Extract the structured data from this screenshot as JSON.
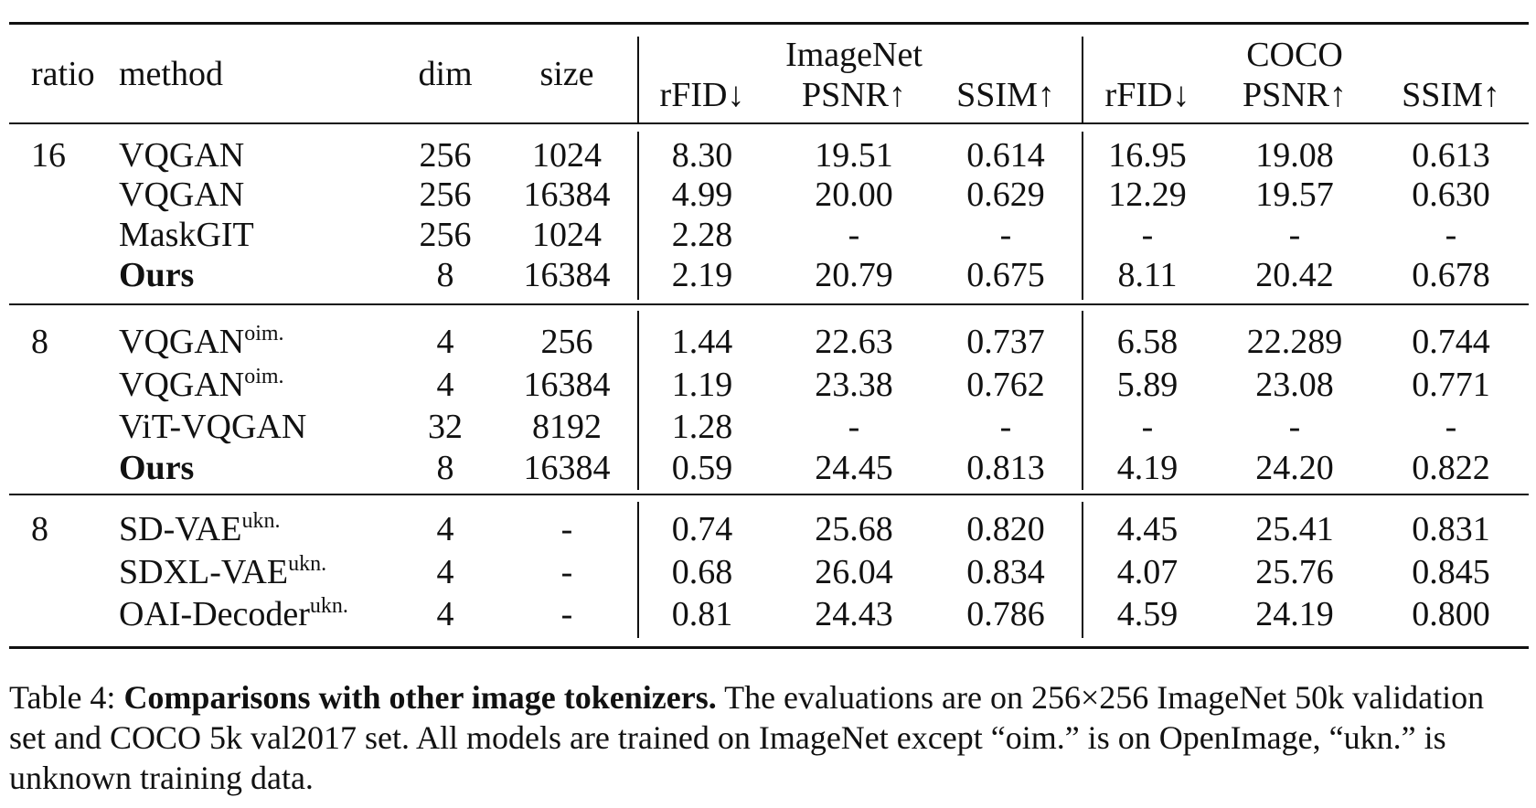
{
  "table": {
    "headers": {
      "ratio": "ratio",
      "method": "method",
      "dim": "dim",
      "size": "size",
      "group_imagenet": "ImageNet",
      "group_coco": "COCO",
      "rfid": "rFID↓",
      "psnr": "PSNR↑",
      "ssim": "SSIM↑"
    },
    "sections": [
      {
        "ratio": "16",
        "rows": [
          {
            "method": "VQGAN",
            "sup": "",
            "bold": false,
            "dim": "256",
            "size": "1024",
            "in_rfid": "8.30",
            "in_psnr": "19.51",
            "in_ssim": "0.614",
            "co_rfid": "16.95",
            "co_psnr": "19.08",
            "co_ssim": "0.613"
          },
          {
            "method": "VQGAN",
            "sup": "",
            "bold": false,
            "dim": "256",
            "size": "16384",
            "in_rfid": "4.99",
            "in_psnr": "20.00",
            "in_ssim": "0.629",
            "co_rfid": "12.29",
            "co_psnr": "19.57",
            "co_ssim": "0.630"
          },
          {
            "method": "MaskGIT",
            "sup": "",
            "bold": false,
            "dim": "256",
            "size": "1024",
            "in_rfid": "2.28",
            "in_psnr": "-",
            "in_ssim": "-",
            "co_rfid": "-",
            "co_psnr": "-",
            "co_ssim": "-"
          },
          {
            "method": "Ours",
            "sup": "",
            "bold": true,
            "dim": "8",
            "size": "16384",
            "in_rfid": "2.19",
            "in_psnr": "20.79",
            "in_ssim": "0.675",
            "co_rfid": "8.11",
            "co_psnr": "20.42",
            "co_ssim": "0.678"
          }
        ]
      },
      {
        "ratio": "8",
        "rows": [
          {
            "method": "VQGAN",
            "sup": "oim.",
            "bold": false,
            "dim": "4",
            "size": "256",
            "in_rfid": "1.44",
            "in_psnr": "22.63",
            "in_ssim": "0.737",
            "co_rfid": "6.58",
            "co_psnr": "22.289",
            "co_ssim": "0.744"
          },
          {
            "method": "VQGAN",
            "sup": "oim.",
            "bold": false,
            "dim": "4",
            "size": "16384",
            "in_rfid": "1.19",
            "in_psnr": "23.38",
            "in_ssim": "0.762",
            "co_rfid": "5.89",
            "co_psnr": "23.08",
            "co_ssim": "0.771"
          },
          {
            "method": "ViT-VQGAN",
            "sup": "",
            "bold": false,
            "dim": "32",
            "size": "8192",
            "in_rfid": "1.28",
            "in_psnr": "-",
            "in_ssim": "-",
            "co_rfid": "-",
            "co_psnr": "-",
            "co_ssim": "-"
          },
          {
            "method": "Ours",
            "sup": "",
            "bold": true,
            "dim": "8",
            "size": "16384",
            "in_rfid": "0.59",
            "in_psnr": "24.45",
            "in_ssim": "0.813",
            "co_rfid": "4.19",
            "co_psnr": "24.20",
            "co_ssim": "0.822"
          }
        ]
      },
      {
        "ratio": "8",
        "rows": [
          {
            "method": "SD-VAE",
            "sup": "ukn.",
            "bold": false,
            "dim": "4",
            "size": "-",
            "in_rfid": "0.74",
            "in_psnr": "25.68",
            "in_ssim": "0.820",
            "co_rfid": "4.45",
            "co_psnr": "25.41",
            "co_ssim": "0.831"
          },
          {
            "method": "SDXL-VAE",
            "sup": "ukn.",
            "bold": false,
            "dim": "4",
            "size": "-",
            "in_rfid": "0.68",
            "in_psnr": "26.04",
            "in_ssim": "0.834",
            "co_rfid": "4.07",
            "co_psnr": "25.76",
            "co_ssim": "0.845"
          },
          {
            "method": "OAI-Decoder",
            "sup": "ukn.",
            "bold": false,
            "dim": "4",
            "size": "-",
            "in_rfid": "0.81",
            "in_psnr": "24.43",
            "in_ssim": "0.786",
            "co_rfid": "4.59",
            "co_psnr": "24.19",
            "co_ssim": "0.800"
          }
        ]
      }
    ]
  },
  "caption": {
    "label": "Table 4:",
    "title": "Comparisons with other image tokenizers.",
    "text": "The evaluations are on 256×256 ImageNet 50k validation set and COCO 5k val2017 set. All models are trained on ImageNet except “oim.” is on OpenImage, “ukn.” is unknown training data."
  }
}
